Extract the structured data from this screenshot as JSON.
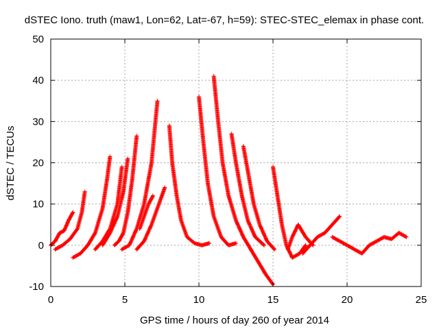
{
  "chart_data": {
    "type": "scatter",
    "title": "dSTEC Iono. truth (maw1, Lon=62, Lat=-67, h=59): STEC-STEC_elemax in phase cont.",
    "xlabel": "GPS time / hours of day 260 of year 2014",
    "ylabel": "dSTEC  / TECUs",
    "xlim": [
      0,
      25
    ],
    "ylim": [
      -10,
      50
    ],
    "xticks": [
      0,
      5,
      10,
      15,
      20,
      25
    ],
    "yticks": [
      -10,
      0,
      10,
      20,
      30,
      40,
      50
    ],
    "grid": true,
    "marker": "+",
    "color": "#ff0000",
    "series": [
      {
        "x": [
          0.0,
          0.3,
          0.6,
          0.9,
          1.2,
          1.5
        ],
        "y": [
          0.0,
          1.0,
          3.0,
          3.5,
          6.0,
          8.0
        ]
      },
      {
        "x": [
          0.3,
          0.8,
          1.3,
          1.8,
          2.1,
          2.3
        ],
        "y": [
          -1.0,
          0.0,
          1.5,
          4.0,
          8.0,
          13.0
        ]
      },
      {
        "x": [
          1.5,
          2.0,
          2.5,
          3.0,
          3.5,
          3.8,
          4.0
        ],
        "y": [
          -3.0,
          -2.0,
          0.0,
          3.0,
          9.0,
          16.0,
          21.5
        ]
      },
      {
        "x": [
          3.0,
          3.5,
          4.0,
          4.5,
          4.8
        ],
        "y": [
          -1.0,
          1.0,
          4.0,
          10.0,
          19.0
        ]
      },
      {
        "x": [
          3.5,
          4.0,
          4.5,
          4.9,
          5.2
        ],
        "y": [
          0.0,
          3.0,
          7.0,
          13.0,
          21.0
        ]
      },
      {
        "x": [
          4.3,
          4.6,
          4.9,
          5.2,
          5.5,
          5.8
        ],
        "y": [
          0.0,
          1.0,
          3.0,
          8.0,
          16.0,
          26.5
        ]
      },
      {
        "x": [
          4.8,
          5.3,
          5.8,
          6.3,
          6.8,
          7.2
        ],
        "y": [
          -1.0,
          0.0,
          4.0,
          10.0,
          20.0,
          35.0
        ]
      },
      {
        "x": [
          5.8,
          6.3,
          6.8,
          7.3,
          7.7
        ],
        "y": [
          -1.0,
          1.0,
          5.0,
          10.0,
          14.0
        ]
      },
      {
        "x": [
          6.0,
          6.3,
          6.6,
          6.9
        ],
        "y": [
          4.0,
          7.0,
          10.0,
          12.0
        ]
      },
      {
        "x": [
          8.0,
          8.2,
          8.5,
          8.8,
          9.2,
          9.7,
          10.2,
          10.7
        ],
        "y": [
          29.0,
          20.0,
          12.0,
          6.0,
          2.0,
          0.5,
          0.0,
          0.5
        ]
      },
      {
        "x": [
          10.0,
          10.3,
          10.6,
          11.0,
          11.5,
          12.0,
          12.5
        ],
        "y": [
          36.0,
          25.0,
          15.0,
          7.0,
          2.0,
          0.0,
          0.5
        ]
      },
      {
        "x": [
          11.0,
          11.3,
          11.6,
          12.0,
          12.5,
          13.0,
          13.5,
          14.0,
          14.5,
          15.0
        ],
        "y": [
          41.0,
          30.0,
          20.0,
          12.0,
          6.0,
          2.0,
          -1.0,
          -4.0,
          -7.0,
          -9.5
        ]
      },
      {
        "x": [
          12.2,
          12.5,
          12.9,
          13.3,
          13.8,
          14.4
        ],
        "y": [
          27.0,
          20.0,
          12.0,
          6.0,
          2.0,
          0.0
        ]
      },
      {
        "x": [
          13.0,
          13.3,
          13.7,
          14.1,
          14.6,
          15.1
        ],
        "y": [
          24.0,
          18.0,
          10.0,
          5.0,
          1.0,
          -1.0
        ]
      },
      {
        "x": [
          15.0,
          15.3,
          15.6,
          15.9,
          16.3,
          16.8,
          17.2
        ],
        "y": [
          19.0,
          12.0,
          5.0,
          0.0,
          -3.0,
          -2.0,
          0.0
        ]
      },
      {
        "x": [
          16.0,
          16.3,
          16.7,
          17.2,
          17.7
        ],
        "y": [
          -1.0,
          2.0,
          5.0,
          2.0,
          0.0
        ]
      },
      {
        "x": [
          17.0,
          17.5,
          18.0,
          18.5,
          19.0,
          19.5
        ],
        "y": [
          -2.0,
          0.0,
          2.0,
          3.0,
          5.0,
          7.0
        ]
      },
      {
        "x": [
          19.0,
          19.5,
          20.0,
          20.5,
          21.0,
          21.5
        ],
        "y": [
          2.0,
          1.0,
          0.0,
          -1.0,
          -2.0,
          0.0
        ]
      },
      {
        "x": [
          21.5,
          22.0,
          22.5,
          23.0,
          23.5,
          24.0
        ],
        "y": [
          0.0,
          1.0,
          2.0,
          1.5,
          3.0,
          2.0
        ]
      }
    ]
  }
}
